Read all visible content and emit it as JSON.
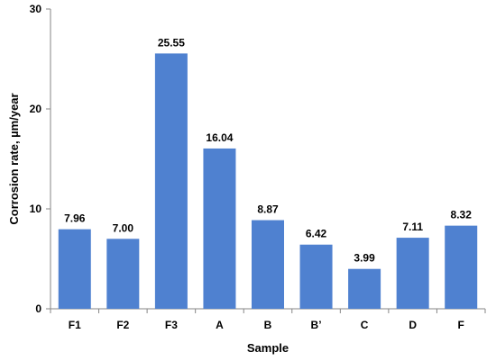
{
  "chart_data": {
    "type": "bar",
    "categories": [
      "F1",
      "F2",
      "F3",
      "A",
      "B",
      "B’",
      "C",
      "D",
      "F"
    ],
    "values": [
      7.96,
      7.0,
      25.55,
      16.04,
      8.87,
      6.42,
      3.99,
      7.11,
      8.32
    ],
    "data_labels": [
      "7.96",
      "7.00",
      "25.55",
      "16.04",
      "8.87",
      "6.42",
      "3.99",
      "7.11",
      "8.32"
    ],
    "xlabel": "Sample",
    "ylabel": "Corrosion rate, µm/year",
    "ylim": [
      0,
      30
    ],
    "yticks": [
      0,
      10,
      20,
      30
    ],
    "grid": false,
    "bar_color": "#4f81d0"
  }
}
